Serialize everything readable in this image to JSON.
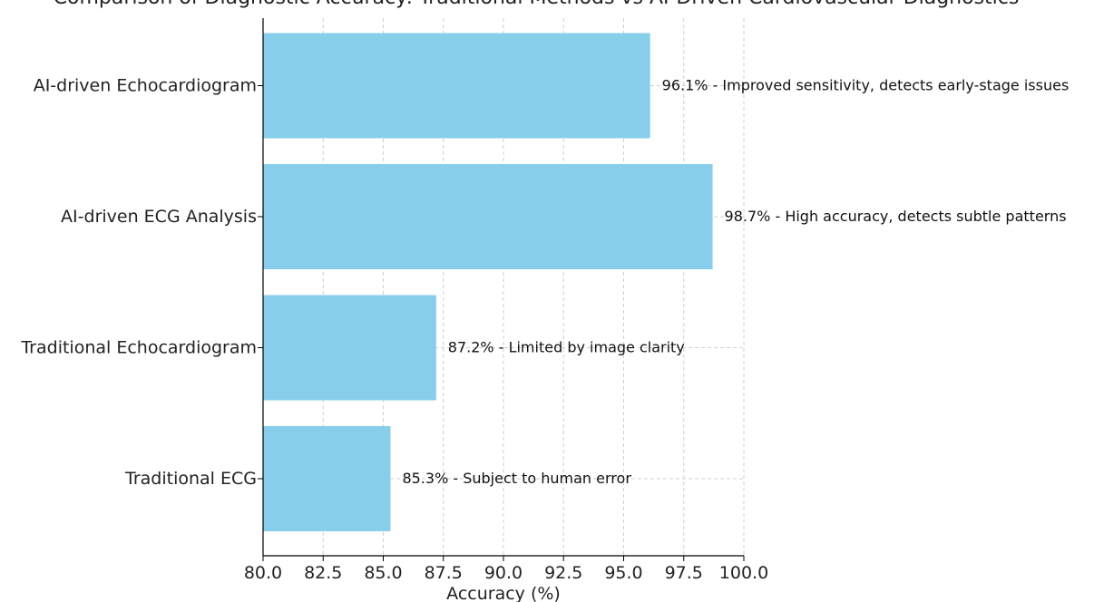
{
  "chart_data": {
    "type": "bar",
    "orientation": "horizontal",
    "title": "Comparison of Diagnostic Accuracy: Traditional Methods vs AI-Driven Cardiovascular Diagnostics",
    "xlabel": "Accuracy (%)",
    "ylabel": "",
    "xlim": [
      80,
      100
    ],
    "x_ticks": [
      "80.0",
      "82.5",
      "85.0",
      "87.5",
      "90.0",
      "92.5",
      "95.0",
      "97.5",
      "100.0"
    ],
    "grid": true,
    "bar_color": "#87ceeb",
    "categories": [
      "Traditional ECG",
      "Traditional Echocardiogram",
      "AI-driven ECG Analysis",
      "AI-driven Echocardiogram"
    ],
    "values": [
      85.3,
      87.2,
      98.7,
      96.1
    ],
    "labels": [
      "85.3% - Subject to human error",
      "87.2% - Limited by image clarity",
      "98.7% - High accuracy, detects subtle patterns",
      "96.1% - Improved sensitivity, detects early-stage issues"
    ]
  }
}
